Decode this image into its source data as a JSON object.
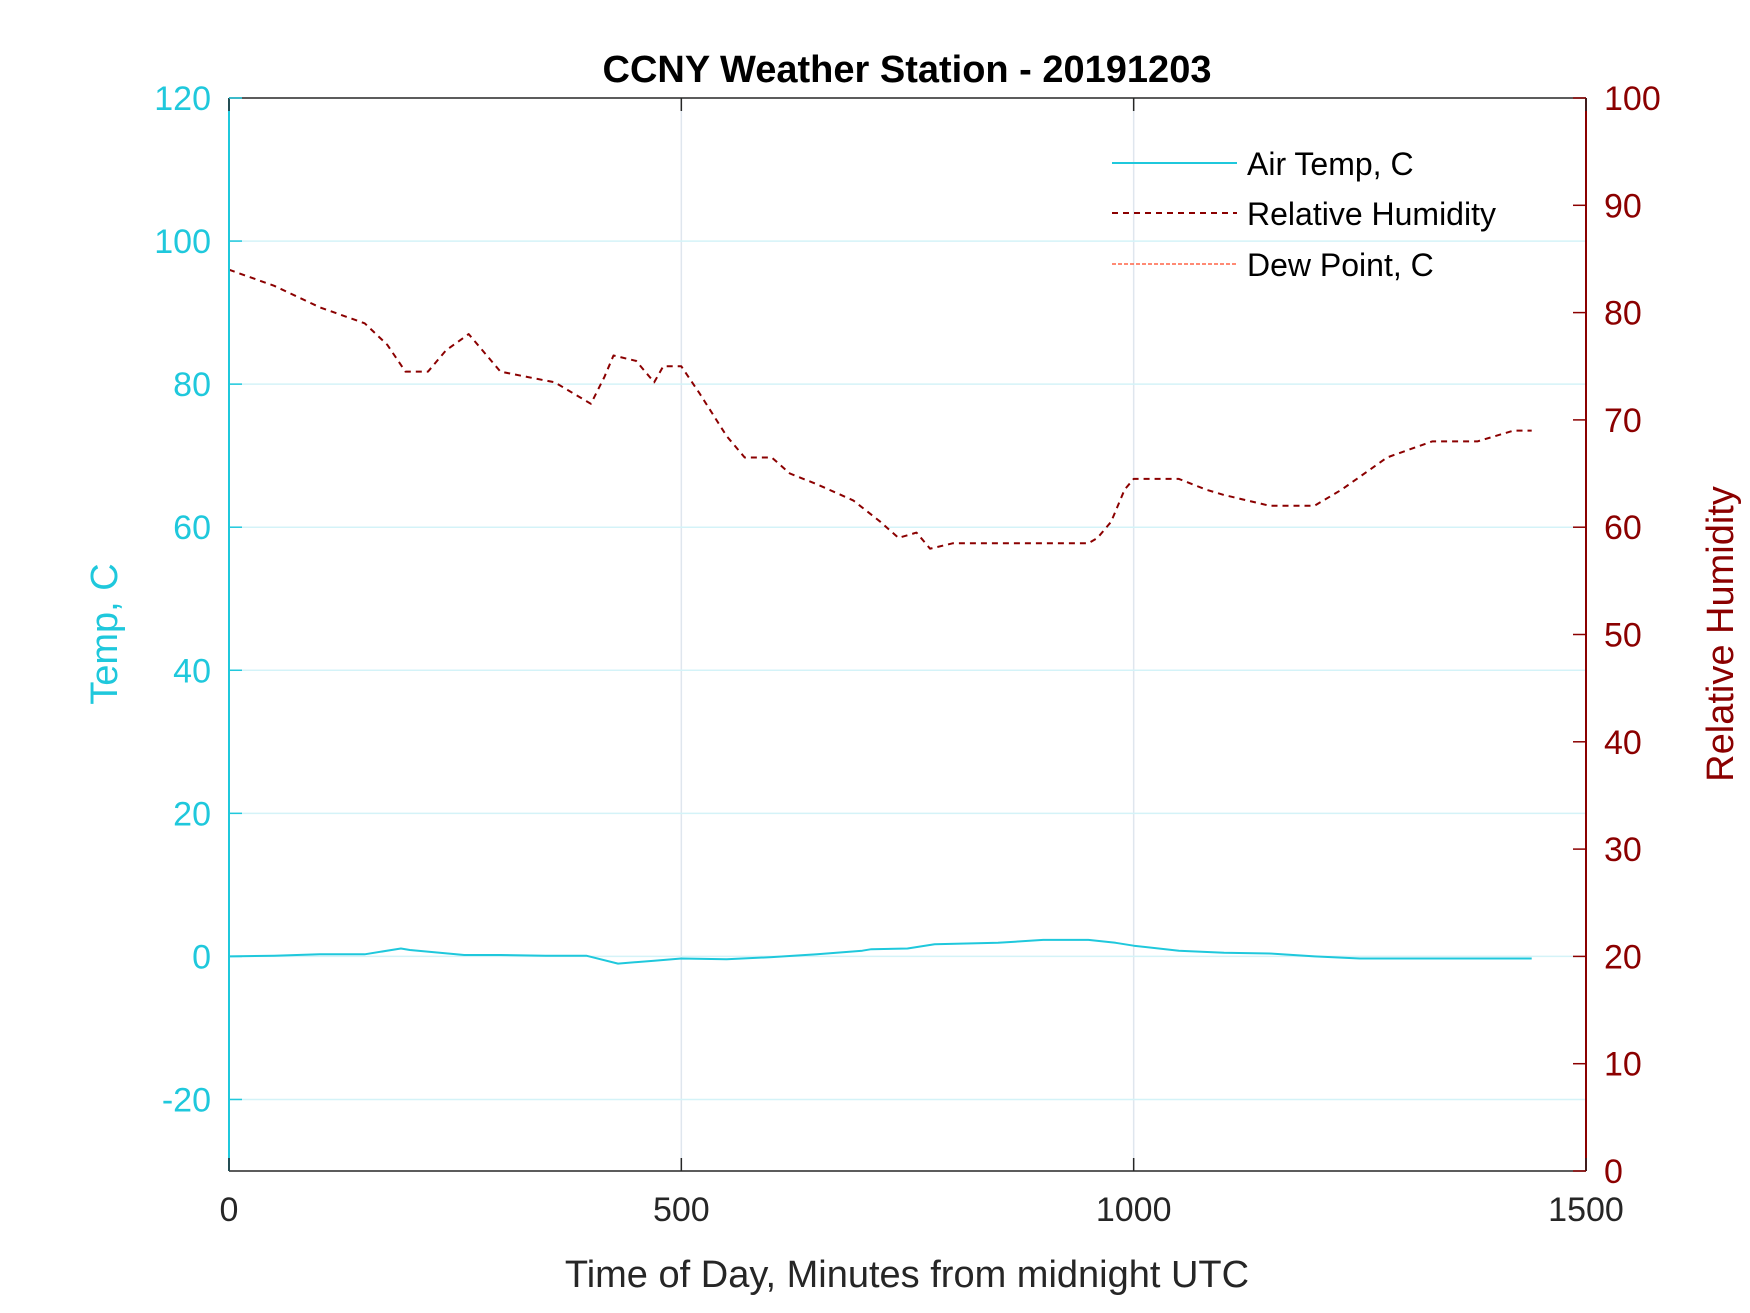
{
  "chart_data": {
    "type": "line",
    "title": "CCNY Weather Station - 20191203",
    "xlabel": "Time of Day, Minutes from midnight UTC",
    "ylabel_left": "Temp, C",
    "ylabel_right": "Relative Humidity",
    "xlim": [
      0,
      1500
    ],
    "ylim_left": [
      -30,
      120
    ],
    "ylim_right": [
      0,
      100
    ],
    "x_ticks": [
      "0",
      "500",
      "1000",
      "1500"
    ],
    "x_tick_values": [
      0,
      500,
      1000,
      1500
    ],
    "y_left_ticks": [
      "-20",
      "0",
      "20",
      "40",
      "60",
      "80",
      "100",
      "120"
    ],
    "y_left_tick_values": [
      -20,
      0,
      20,
      40,
      60,
      80,
      100,
      120
    ],
    "y_right_ticks": [
      "0",
      "10",
      "20",
      "30",
      "40",
      "50",
      "60",
      "70",
      "80",
      "90",
      "100"
    ],
    "y_right_tick_values": [
      0,
      10,
      20,
      30,
      40,
      50,
      60,
      70,
      80,
      90,
      100
    ],
    "grid": true,
    "legend_position": "top-right",
    "colors": {
      "left_axis": "#1fc8dc",
      "right_axis": "#8b0000",
      "air_temp": "#1fc8dc",
      "relative_humidity": "#8b0000",
      "dew_point": "#ff6347",
      "grid": "#dfe6ee",
      "hgrid": "#d4f3f8"
    },
    "series": [
      {
        "name": "Air Temp, C",
        "axis": "left",
        "style": "solid",
        "x": [
          0,
          50,
          100,
          150,
          190,
          200,
          260,
          300,
          350,
          395,
          430,
          470,
          500,
          550,
          600,
          650,
          700,
          710,
          750,
          780,
          850,
          900,
          950,
          980,
          1000,
          1050,
          1100,
          1150,
          1200,
          1250,
          1300,
          1350,
          1400,
          1440
        ],
        "y": [
          0.0,
          0.1,
          0.3,
          0.3,
          1.1,
          0.9,
          0.2,
          0.2,
          0.1,
          0.1,
          -1.0,
          -0.6,
          -0.3,
          -0.4,
          -0.1,
          0.3,
          0.8,
          1.0,
          1.1,
          1.7,
          1.9,
          2.3,
          2.3,
          1.9,
          1.5,
          0.8,
          0.5,
          0.4,
          0.0,
          -0.3,
          -0.3,
          -0.3,
          -0.3,
          -0.3
        ]
      },
      {
        "name": "Relative Humidity",
        "axis": "right",
        "style": "dashed",
        "x": [
          0,
          50,
          100,
          150,
          175,
          195,
          220,
          240,
          265,
          285,
          300,
          330,
          360,
          390,
          400,
          415,
          425,
          450,
          470,
          480,
          500,
          520,
          550,
          570,
          600,
          620,
          650,
          690,
          720,
          740,
          760,
          775,
          800,
          850,
          900,
          950,
          960,
          975,
          990,
          1000,
          1050,
          1080,
          1100,
          1150,
          1200,
          1230,
          1280,
          1330,
          1380,
          1420,
          1440
        ],
        "y": [
          84,
          82.5,
          80.5,
          79,
          77,
          74.5,
          74.5,
          76.5,
          78,
          76,
          74.5,
          74,
          73.5,
          72,
          71.5,
          74,
          76,
          75.5,
          73.5,
          75,
          75,
          72.5,
          68.5,
          66.5,
          66.5,
          65,
          64,
          62.5,
          60.5,
          59,
          59.5,
          58,
          58.5,
          58.5,
          58.5,
          58.5,
          59,
          60.5,
          63.5,
          64.5,
          64.5,
          63.5,
          63,
          62,
          62,
          63.5,
          66.5,
          68,
          68,
          69,
          69
        ]
      },
      {
        "name": "Dew Point, C",
        "axis": "left",
        "style": "dash-dot",
        "x": [],
        "y": []
      }
    ]
  }
}
